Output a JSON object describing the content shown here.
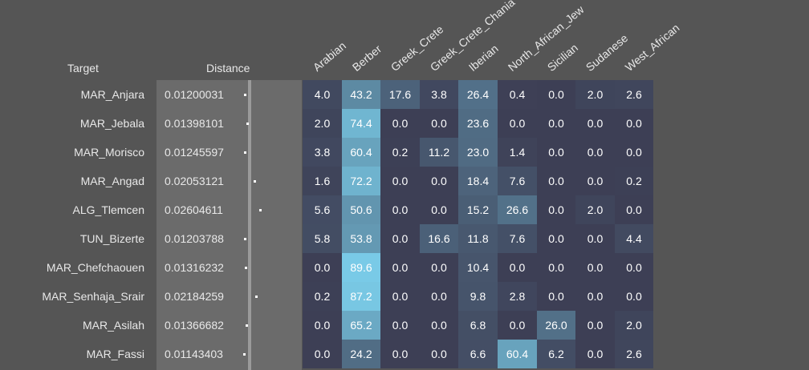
{
  "chart_data": {
    "type": "heatmap",
    "headers": {
      "target": "Target",
      "distance": "Distance"
    },
    "columns": [
      "Arabian",
      "Berber",
      "Greek_Crete",
      "Greek_Crete_Chania",
      "Iberian",
      "North_African_Jew",
      "Sicilian",
      "Sudanese",
      "West_African"
    ],
    "rows": [
      {
        "target": "MAR_Anjara",
        "distance": "0.01200031",
        "values": [
          "4.0",
          "43.2",
          "17.6",
          "3.8",
          "26.4",
          "0.4",
          "0.0",
          "2.0",
          "2.6"
        ]
      },
      {
        "target": "MAR_Jebala",
        "distance": "0.01398101",
        "values": [
          "2.0",
          "74.4",
          "0.0",
          "0.0",
          "23.6",
          "0.0",
          "0.0",
          "0.0",
          "0.0"
        ]
      },
      {
        "target": "MAR_Morisco",
        "distance": "0.01245597",
        "values": [
          "3.8",
          "60.4",
          "0.2",
          "11.2",
          "23.0",
          "1.4",
          "0.0",
          "0.0",
          "0.0"
        ]
      },
      {
        "target": "MAR_Angad",
        "distance": "0.02053121",
        "values": [
          "1.6",
          "72.2",
          "0.0",
          "0.0",
          "18.4",
          "7.6",
          "0.0",
          "0.0",
          "0.2"
        ]
      },
      {
        "target": "ALG_Tlemcen",
        "distance": "0.02604611",
        "values": [
          "5.6",
          "50.6",
          "0.0",
          "0.0",
          "15.2",
          "26.6",
          "0.0",
          "2.0",
          "0.0"
        ]
      },
      {
        "target": "TUN_Bizerte",
        "distance": "0.01203788",
        "values": [
          "5.8",
          "53.8",
          "0.0",
          "16.6",
          "11.8",
          "7.6",
          "0.0",
          "0.0",
          "4.4"
        ]
      },
      {
        "target": "MAR_Chefchaouen",
        "distance": "0.01316232",
        "values": [
          "0.0",
          "89.6",
          "0.0",
          "0.0",
          "10.4",
          "0.0",
          "0.0",
          "0.0",
          "0.0"
        ]
      },
      {
        "target": "MAR_Senhaja_Srair",
        "distance": "0.02184259",
        "values": [
          "0.2",
          "87.2",
          "0.0",
          "0.0",
          "9.8",
          "2.8",
          "0.0",
          "0.0",
          "0.0"
        ]
      },
      {
        "target": "MAR_Asilah",
        "distance": "0.01366682",
        "values": [
          "0.0",
          "65.2",
          "0.0",
          "0.0",
          "6.8",
          "0.0",
          "26.0",
          "0.0",
          "2.0"
        ]
      },
      {
        "target": "MAR_Fassi",
        "distance": "0.01143403",
        "values": [
          "0.0",
          "24.2",
          "0.0",
          "0.0",
          "6.6",
          "60.4",
          "6.2",
          "0.0",
          "2.6"
        ]
      }
    ],
    "distance_range": [
      0,
      0.03
    ],
    "value_range": [
      0,
      100
    ],
    "colors": {
      "low": "#3d3f55",
      "high": "#7fd8f5"
    }
  }
}
